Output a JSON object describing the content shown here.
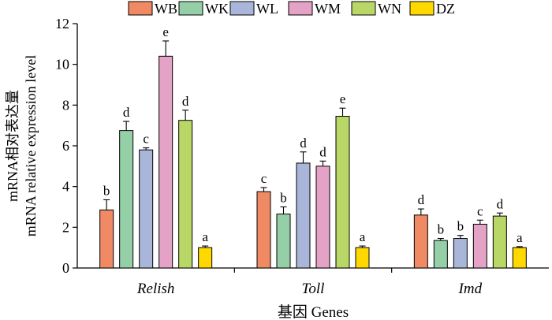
{
  "chart_data": {
    "type": "bar",
    "categories": [
      "Relish",
      "Toll",
      "Imd"
    ],
    "series": [
      {
        "name": "WB",
        "color": "#f08a65",
        "values": [
          2.85,
          3.75,
          2.6
        ],
        "errors": [
          0.5,
          0.2,
          0.3
        ],
        "labels": [
          "b",
          "c",
          "d"
        ]
      },
      {
        "name": "WK",
        "color": "#94cfa8",
        "values": [
          6.75,
          2.65,
          1.35
        ],
        "errors": [
          0.45,
          0.35,
          0.1
        ],
        "labels": [
          "d",
          "b",
          "b"
        ]
      },
      {
        "name": "WL",
        "color": "#a9b6d9",
        "values": [
          5.8,
          5.15,
          1.45
        ],
        "errors": [
          0.1,
          0.55,
          0.15
        ],
        "labels": [
          "c",
          "d",
          "b"
        ]
      },
      {
        "name": "WM",
        "color": "#e4a2c6",
        "values": [
          10.4,
          5.0,
          2.15
        ],
        "errors": [
          0.75,
          0.25,
          0.2
        ],
        "labels": [
          "e",
          "d",
          "c"
        ]
      },
      {
        "name": "WN",
        "color": "#b9d766",
        "values": [
          7.25,
          7.45,
          2.55
        ],
        "errors": [
          0.5,
          0.4,
          0.15
        ],
        "labels": [
          "d",
          "e",
          "d"
        ]
      },
      {
        "name": "DZ",
        "color": "#ffd800",
        "values": [
          1.0,
          1.0,
          1.0
        ],
        "errors": [
          0.08,
          0.08,
          0.05
        ],
        "labels": [
          "a",
          "a",
          "a"
        ]
      }
    ],
    "xlabel": "基因 Genes",
    "ylabel_lines": [
      "mRNA相对表达量",
      "mRNA relative expression level"
    ],
    "ylim": [
      0,
      12
    ],
    "yticks": [
      0,
      2,
      4,
      6,
      8,
      10,
      12
    ],
    "grid": false,
    "legend_position": "top"
  }
}
